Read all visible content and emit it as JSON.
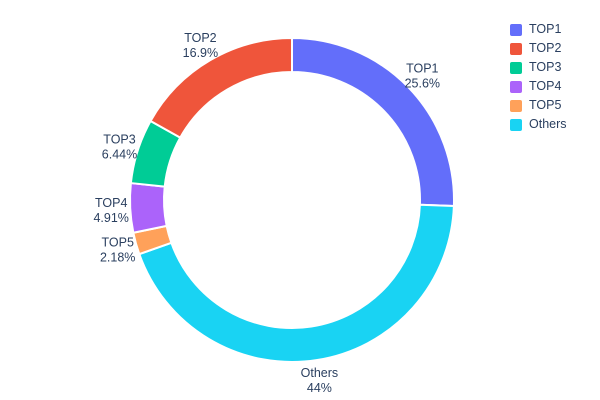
{
  "chart_data": {
    "type": "pie",
    "subtype": "donut",
    "title": "",
    "hole_ratio": 0.79,
    "rotation_start": "12-oclock",
    "grid": false,
    "legend_position": "top-right",
    "text_color": "#2a3f5f",
    "background_color": "#ffffff",
    "slices": [
      {
        "label": "TOP1",
        "value": 25.6,
        "pct_label": "25.6%",
        "color": "#636EFA"
      },
      {
        "label": "TOP2",
        "value": 16.9,
        "pct_label": "16.9%",
        "color": "#EF553B"
      },
      {
        "label": "TOP3",
        "value": 6.44,
        "pct_label": "6.44%",
        "color": "#00CC96"
      },
      {
        "label": "TOP4",
        "value": 4.91,
        "pct_label": "4.91%",
        "color": "#AB63FA"
      },
      {
        "label": "TOP5",
        "value": 2.18,
        "pct_label": "2.18%",
        "color": "#FFA15A"
      },
      {
        "label": "Others",
        "value": 44.0,
        "pct_label": "44%",
        "color": "#19D3F3"
      }
    ],
    "draw_order_clockwise": [
      "TOP1",
      "Others",
      "TOP5",
      "TOP4",
      "TOP3",
      "TOP2"
    ],
    "legend_order": [
      "TOP1",
      "TOP2",
      "TOP3",
      "TOP4",
      "TOP5",
      "Others"
    ]
  }
}
